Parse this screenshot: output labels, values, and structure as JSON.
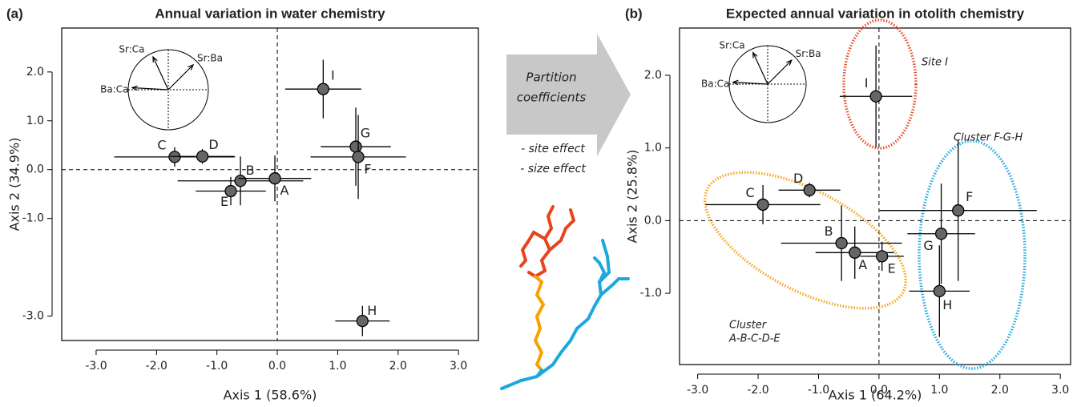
{
  "chart_data": [
    {
      "type": "scatter",
      "panel_label": "(a)",
      "title": "Annual variation in water chemistry",
      "xlabel": "Axis 1 (58.6%)",
      "ylabel": "Axis 2 (34.9%)",
      "point_labels": [
        "I",
        "G",
        "F",
        "C",
        "D",
        "B",
        "A",
        "E",
        "H"
      ],
      "x": [
        0.76,
        1.3,
        1.34,
        -1.7,
        -1.24,
        -0.61,
        -0.04,
        -0.77,
        1.41
      ],
      "y": [
        1.65,
        0.47,
        0.26,
        0.26,
        0.27,
        -0.23,
        -0.18,
        -0.44,
        -3.1
      ],
      "xerr": [
        0.63,
        0.58,
        0.79,
        1.0,
        0.53,
        1.04,
        0.6,
        0.58,
        0.45
      ],
      "yerr": [
        0.6,
        0.8,
        0.86,
        0.2,
        0.15,
        0.5,
        0.47,
        0.29,
        0.31
      ],
      "color": "#666666",
      "xlim": [
        -3.57,
        3.33
      ],
      "ylim": [
        -3.5,
        2.9
      ],
      "xticks": [
        {
          "value": -3,
          "label": "-3.0"
        },
        {
          "value": -2,
          "label": "-2.0"
        },
        {
          "value": -1,
          "label": "-1.0"
        },
        {
          "value": 0,
          "label": "0.0"
        },
        {
          "value": 1,
          "label": "1.0"
        },
        {
          "value": 2,
          "label": "2.0"
        },
        {
          "value": 3,
          "label": "3.0"
        }
      ],
      "yticks": [
        {
          "value": 2,
          "label": "2.0"
        },
        {
          "value": 1,
          "label": "1.0"
        },
        {
          "value": 0,
          "label": "0.0"
        },
        {
          "value": -1,
          "label": "-1.0"
        },
        {
          "value": -3,
          "label": "-3.0"
        }
      ],
      "inset_labels": [
        "Sr:Ca",
        "Sr:Ba",
        "Ba:Ca"
      ]
    },
    {
      "type": "scatter",
      "panel_label": "(b)",
      "title": "Expected annual variation in otolith chemistry",
      "xlabel": "Axis 1 (64.2%)",
      "ylabel": "Axis 2 (25.8%)",
      "point_labels": [
        "I",
        "F",
        "G",
        "H",
        "C",
        "D",
        "B",
        "A",
        "E"
      ],
      "x": [
        -0.05,
        1.31,
        1.03,
        1.0,
        -1.92,
        -1.15,
        -0.62,
        -0.4,
        0.05
      ],
      "y": [
        1.71,
        0.14,
        -0.18,
        -0.97,
        0.22,
        0.42,
        -0.31,
        -0.44,
        -0.49
      ],
      "xerr": [
        0.6,
        1.3,
        0.56,
        0.5,
        0.95,
        0.51,
        1.0,
        0.65,
        0.36
      ],
      "yerr": [
        0.7,
        0.97,
        0.69,
        0.63,
        0.27,
        0.1,
        0.52,
        0.36,
        0.2
      ],
      "color": "#666666",
      "xlim": [
        -3.3,
        3.17
      ],
      "ylim": [
        -1.98,
        2.65
      ],
      "xticks": [
        {
          "value": -3,
          "label": "-3.0"
        },
        {
          "value": -2,
          "label": "-2.0"
        },
        {
          "value": -1,
          "label": "-1.0"
        },
        {
          "value": 0,
          "label": "0.0"
        },
        {
          "value": 1,
          "label": "1.0"
        },
        {
          "value": 2,
          "label": "2.0"
        },
        {
          "value": 3,
          "label": "3.0"
        }
      ],
      "yticks": [
        {
          "value": 2,
          "label": "2.0"
        },
        {
          "value": 1,
          "label": "1.0"
        },
        {
          "value": 0,
          "label": "0.0"
        },
        {
          "value": -1,
          "label": "-1.0"
        }
      ],
      "inset_labels": [
        "Sr:Ca",
        "Sr:Ba",
        "Ba:Ca"
      ],
      "annotations": [
        {
          "text": [
            "Site I"
          ],
          "color": "#e8502a"
        },
        {
          "text": [
            "Cluster F-G-H"
          ],
          "color": "#26a9e0"
        },
        {
          "text": [
            "Cluster",
            "A-B-C-D-E"
          ],
          "color": "#f5a623"
        }
      ]
    }
  ],
  "middle": {
    "arrow_label": [
      "Partition",
      "coefficients"
    ],
    "notes": [
      "- site effect",
      "- size effect"
    ]
  }
}
